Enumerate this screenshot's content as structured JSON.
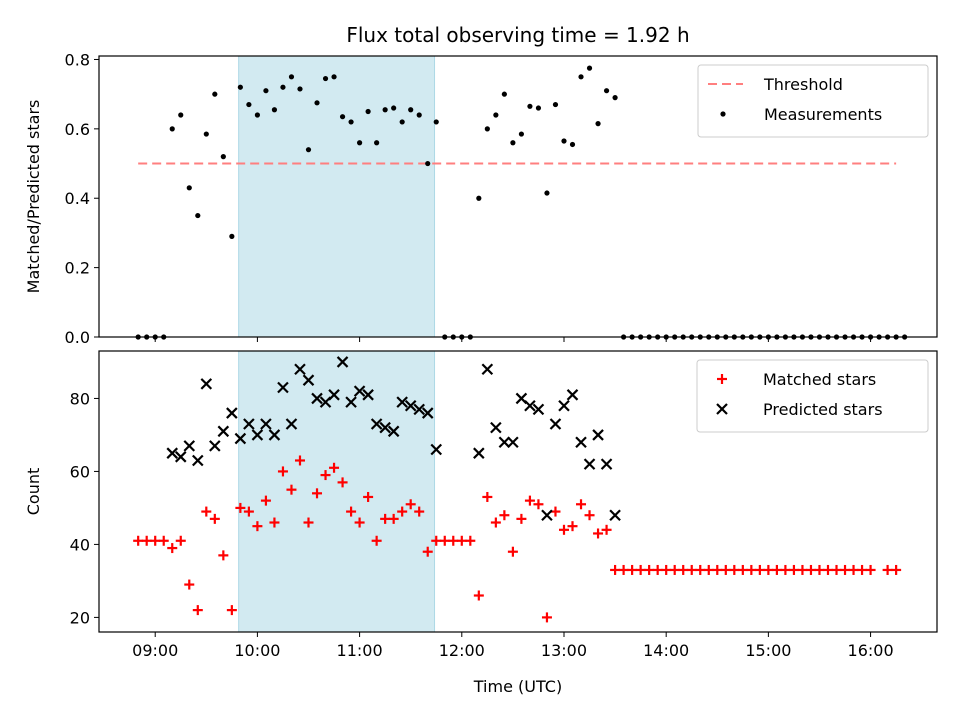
{
  "chart_data": {
    "title": "Flux total observing time = 1.92 h",
    "xlabel": "Time (UTC)",
    "x_ticks": [
      "09:00",
      "10:00",
      "11:00",
      "12:00",
      "13:00",
      "14:00",
      "15:00",
      "16:00"
    ],
    "highlight_span": {
      "start": "09:49",
      "end": "11:44",
      "color": "#add8e6"
    },
    "panels": [
      {
        "type": "scatter",
        "ylabel": "Matched/Predicted stars",
        "ylim": [
          0,
          0.81
        ],
        "yticks": [
          0.0,
          0.2,
          0.4,
          0.6,
          0.8
        ],
        "legend_position": "top-right",
        "threshold": {
          "name": "Threshold",
          "value": 0.5,
          "x_start": "08:50",
          "x_end": "16:15",
          "color": "#ff7f7f"
        },
        "series": [
          {
            "name": "Measurements",
            "marker": "dot",
            "color": "#000000",
            "points": [
              [
                "08:50",
                0
              ],
              [
                "08:55",
                0
              ],
              [
                "09:00",
                0
              ],
              [
                "09:05",
                0
              ],
              [
                "09:10",
                0.6
              ],
              [
                "09:15",
                0.64
              ],
              [
                "09:20",
                0.43
              ],
              [
                "09:25",
                0.35
              ],
              [
                "09:30",
                0.585
              ],
              [
                "09:35",
                0.7
              ],
              [
                "09:40",
                0.52
              ],
              [
                "09:45",
                0.29
              ],
              [
                "09:50",
                0.72
              ],
              [
                "09:55",
                0.67
              ],
              [
                "10:00",
                0.64
              ],
              [
                "10:05",
                0.71
              ],
              [
                "10:10",
                0.655
              ],
              [
                "10:15",
                0.72
              ],
              [
                "10:20",
                0.75
              ],
              [
                "10:25",
                0.715
              ],
              [
                "10:30",
                0.54
              ],
              [
                "10:35",
                0.675
              ],
              [
                "10:40",
                0.745
              ],
              [
                "10:45",
                0.75
              ],
              [
                "10:50",
                0.635
              ],
              [
                "10:55",
                0.62
              ],
              [
                "11:00",
                0.56
              ],
              [
                "11:05",
                0.65
              ],
              [
                "11:10",
                0.56
              ],
              [
                "11:15",
                0.655
              ],
              [
                "11:20",
                0.66
              ],
              [
                "11:25",
                0.62
              ],
              [
                "11:30",
                0.655
              ],
              [
                "11:35",
                0.64
              ],
              [
                "11:40",
                0.5
              ],
              [
                "11:45",
                0.62
              ],
              [
                "11:50",
                0
              ],
              [
                "11:55",
                0
              ],
              [
                "12:00",
                0
              ],
              [
                "12:05",
                0
              ],
              [
                "12:10",
                0.4
              ],
              [
                "12:15",
                0.6
              ],
              [
                "12:20",
                0.64
              ],
              [
                "12:25",
                0.7
              ],
              [
                "12:30",
                0.56
              ],
              [
                "12:35",
                0.585
              ],
              [
                "12:40",
                0.665
              ],
              [
                "12:45",
                0.66
              ],
              [
                "12:50",
                0.415
              ],
              [
                "12:55",
                0.67
              ],
              [
                "13:00",
                0.565
              ],
              [
                "13:05",
                0.555
              ],
              [
                "13:10",
                0.75
              ],
              [
                "13:15",
                0.775
              ],
              [
                "13:20",
                0.615
              ],
              [
                "13:25",
                0.71
              ],
              [
                "13:30",
                0.69
              ],
              [
                "13:35",
                0
              ],
              [
                "13:40",
                0
              ],
              [
                "13:45",
                0
              ],
              [
                "13:50",
                0
              ],
              [
                "13:55",
                0
              ],
              [
                "14:00",
                0
              ],
              [
                "14:05",
                0
              ],
              [
                "14:10",
                0
              ],
              [
                "14:15",
                0
              ],
              [
                "14:20",
                0
              ],
              [
                "14:25",
                0
              ],
              [
                "14:30",
                0
              ],
              [
                "14:35",
                0
              ],
              [
                "14:40",
                0
              ],
              [
                "14:45",
                0
              ],
              [
                "14:50",
                0
              ],
              [
                "14:55",
                0
              ],
              [
                "15:00",
                0
              ],
              [
                "15:05",
                0
              ],
              [
                "15:10",
                0
              ],
              [
                "15:15",
                0
              ],
              [
                "15:20",
                0
              ],
              [
                "15:25",
                0
              ],
              [
                "15:30",
                0
              ],
              [
                "15:35",
                0
              ],
              [
                "15:40",
                0
              ],
              [
                "15:45",
                0
              ],
              [
                "15:50",
                0
              ],
              [
                "15:55",
                0
              ],
              [
                "16:00",
                0
              ],
              [
                "16:05",
                0
              ],
              [
                "16:10",
                0
              ],
              [
                "16:15",
                0
              ],
              [
                "16:20",
                0
              ]
            ]
          }
        ]
      },
      {
        "type": "scatter",
        "ylabel": "Count",
        "ylim": [
          16,
          93
        ],
        "yticks": [
          20,
          40,
          60,
          80
        ],
        "legend_position": "top-right",
        "series": [
          {
            "name": "Matched stars",
            "marker": "plus",
            "color": "#ff0000",
            "points": [
              [
                "08:50",
                41
              ],
              [
                "08:55",
                41
              ],
              [
                "09:00",
                41
              ],
              [
                "09:05",
                41
              ],
              [
                "09:10",
                39
              ],
              [
                "09:15",
                41
              ],
              [
                "09:20",
                29
              ],
              [
                "09:25",
                22
              ],
              [
                "09:30",
                49
              ],
              [
                "09:35",
                47
              ],
              [
                "09:40",
                37
              ],
              [
                "09:45",
                22
              ],
              [
                "09:50",
                50
              ],
              [
                "09:55",
                49
              ],
              [
                "10:00",
                45
              ],
              [
                "10:05",
                52
              ],
              [
                "10:10",
                46
              ],
              [
                "10:15",
                60
              ],
              [
                "10:20",
                55
              ],
              [
                "10:25",
                63
              ],
              [
                "10:30",
                46
              ],
              [
                "10:35",
                54
              ],
              [
                "10:40",
                59
              ],
              [
                "10:45",
                61
              ],
              [
                "10:50",
                57
              ],
              [
                "10:55",
                49
              ],
              [
                "11:00",
                46
              ],
              [
                "11:05",
                53
              ],
              [
                "11:10",
                41
              ],
              [
                "11:15",
                47
              ],
              [
                "11:20",
                47
              ],
              [
                "11:25",
                49
              ],
              [
                "11:30",
                51
              ],
              [
                "11:35",
                49
              ],
              [
                "11:40",
                38
              ],
              [
                "11:45",
                41
              ],
              [
                "11:50",
                41
              ],
              [
                "11:55",
                41
              ],
              [
                "12:00",
                41
              ],
              [
                "12:05",
                41
              ],
              [
                "12:10",
                26
              ],
              [
                "12:15",
                53
              ],
              [
                "12:20",
                46
              ],
              [
                "12:25",
                48
              ],
              [
                "12:30",
                38
              ],
              [
                "12:35",
                47
              ],
              [
                "12:40",
                52
              ],
              [
                "12:45",
                51
              ],
              [
                "12:50",
                20
              ],
              [
                "12:55",
                49
              ],
              [
                "13:00",
                44
              ],
              [
                "13:05",
                45
              ],
              [
                "13:10",
                51
              ],
              [
                "13:15",
                48
              ],
              [
                "13:20",
                43
              ],
              [
                "13:25",
                44
              ],
              [
                "13:30",
                33
              ],
              [
                "13:35",
                33
              ],
              [
                "13:40",
                33
              ],
              [
                "13:45",
                33
              ],
              [
                "13:50",
                33
              ],
              [
                "13:55",
                33
              ],
              [
                "14:00",
                33
              ],
              [
                "14:05",
                33
              ],
              [
                "14:10",
                33
              ],
              [
                "14:15",
                33
              ],
              [
                "14:20",
                33
              ],
              [
                "14:25",
                33
              ],
              [
                "14:30",
                33
              ],
              [
                "14:35",
                33
              ],
              [
                "14:40",
                33
              ],
              [
                "14:45",
                33
              ],
              [
                "14:50",
                33
              ],
              [
                "14:55",
                33
              ],
              [
                "15:00",
                33
              ],
              [
                "15:05",
                33
              ],
              [
                "15:10",
                33
              ],
              [
                "15:15",
                33
              ],
              [
                "15:20",
                33
              ],
              [
                "15:25",
                33
              ],
              [
                "15:30",
                33
              ],
              [
                "15:35",
                33
              ],
              [
                "15:40",
                33
              ],
              [
                "15:45",
                33
              ],
              [
                "15:50",
                33
              ],
              [
                "15:55",
                33
              ],
              [
                "16:00",
                33
              ],
              [
                "16:10",
                33
              ],
              [
                "16:15",
                33
              ]
            ]
          },
          {
            "name": "Predicted stars",
            "marker": "x",
            "color": "#000000",
            "points": [
              [
                "09:10",
                65
              ],
              [
                "09:15",
                64
              ],
              [
                "09:20",
                67
              ],
              [
                "09:25",
                63
              ],
              [
                "09:30",
                84
              ],
              [
                "09:35",
                67
              ],
              [
                "09:40",
                71
              ],
              [
                "09:45",
                76
              ],
              [
                "09:50",
                69
              ],
              [
                "09:55",
                73
              ],
              [
                "10:00",
                70
              ],
              [
                "10:05",
                73
              ],
              [
                "10:10",
                70
              ],
              [
                "10:15",
                83
              ],
              [
                "10:20",
                73
              ],
              [
                "10:25",
                88
              ],
              [
                "10:30",
                85
              ],
              [
                "10:35",
                80
              ],
              [
                "10:40",
                79
              ],
              [
                "10:45",
                81
              ],
              [
                "10:50",
                90
              ],
              [
                "10:55",
                79
              ],
              [
                "11:00",
                82
              ],
              [
                "11:05",
                81
              ],
              [
                "11:10",
                73
              ],
              [
                "11:15",
                72
              ],
              [
                "11:20",
                71
              ],
              [
                "11:25",
                79
              ],
              [
                "11:30",
                78
              ],
              [
                "11:35",
                77
              ],
              [
                "11:40",
                76
              ],
              [
                "11:45",
                66
              ],
              [
                "12:10",
                65
              ],
              [
                "12:15",
                88
              ],
              [
                "12:20",
                72
              ],
              [
                "12:25",
                68
              ],
              [
                "12:30",
                68
              ],
              [
                "12:35",
                80
              ],
              [
                "12:40",
                78
              ],
              [
                "12:45",
                77
              ],
              [
                "12:50",
                48
              ],
              [
                "12:55",
                73
              ],
              [
                "13:00",
                78
              ],
              [
                "13:05",
                81
              ],
              [
                "13:10",
                68
              ],
              [
                "13:15",
                62
              ],
              [
                "13:20",
                70
              ],
              [
                "13:25",
                62
              ],
              [
                "13:30",
                48
              ]
            ]
          }
        ]
      }
    ]
  }
}
